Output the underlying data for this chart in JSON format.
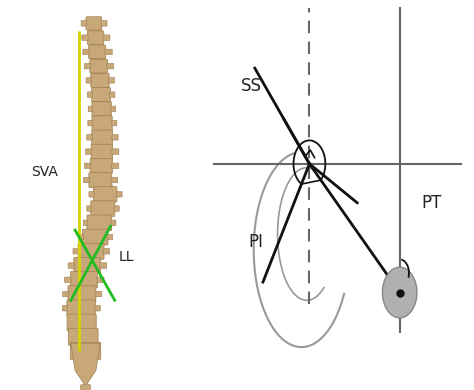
{
  "background_color": "#ffffff",
  "sva_line_color": "#d4d400",
  "ll_line_color": "#22bb22",
  "diagram_line_color": "#111111",
  "gray_line_color": "#999999",
  "axis_line_color": "#666666",
  "circle_color": "#b0b0b0",
  "circle_dot_color": "#111111",
  "label_SVA": "SVA",
  "label_LL": "LL",
  "label_SS": "SS",
  "label_PI": "PI",
  "label_PT": "PT",
  "figsize": [
    4.74,
    3.9
  ],
  "dpi": 100,
  "bone_color": "#c8a878",
  "bone_edge": "#a08050"
}
